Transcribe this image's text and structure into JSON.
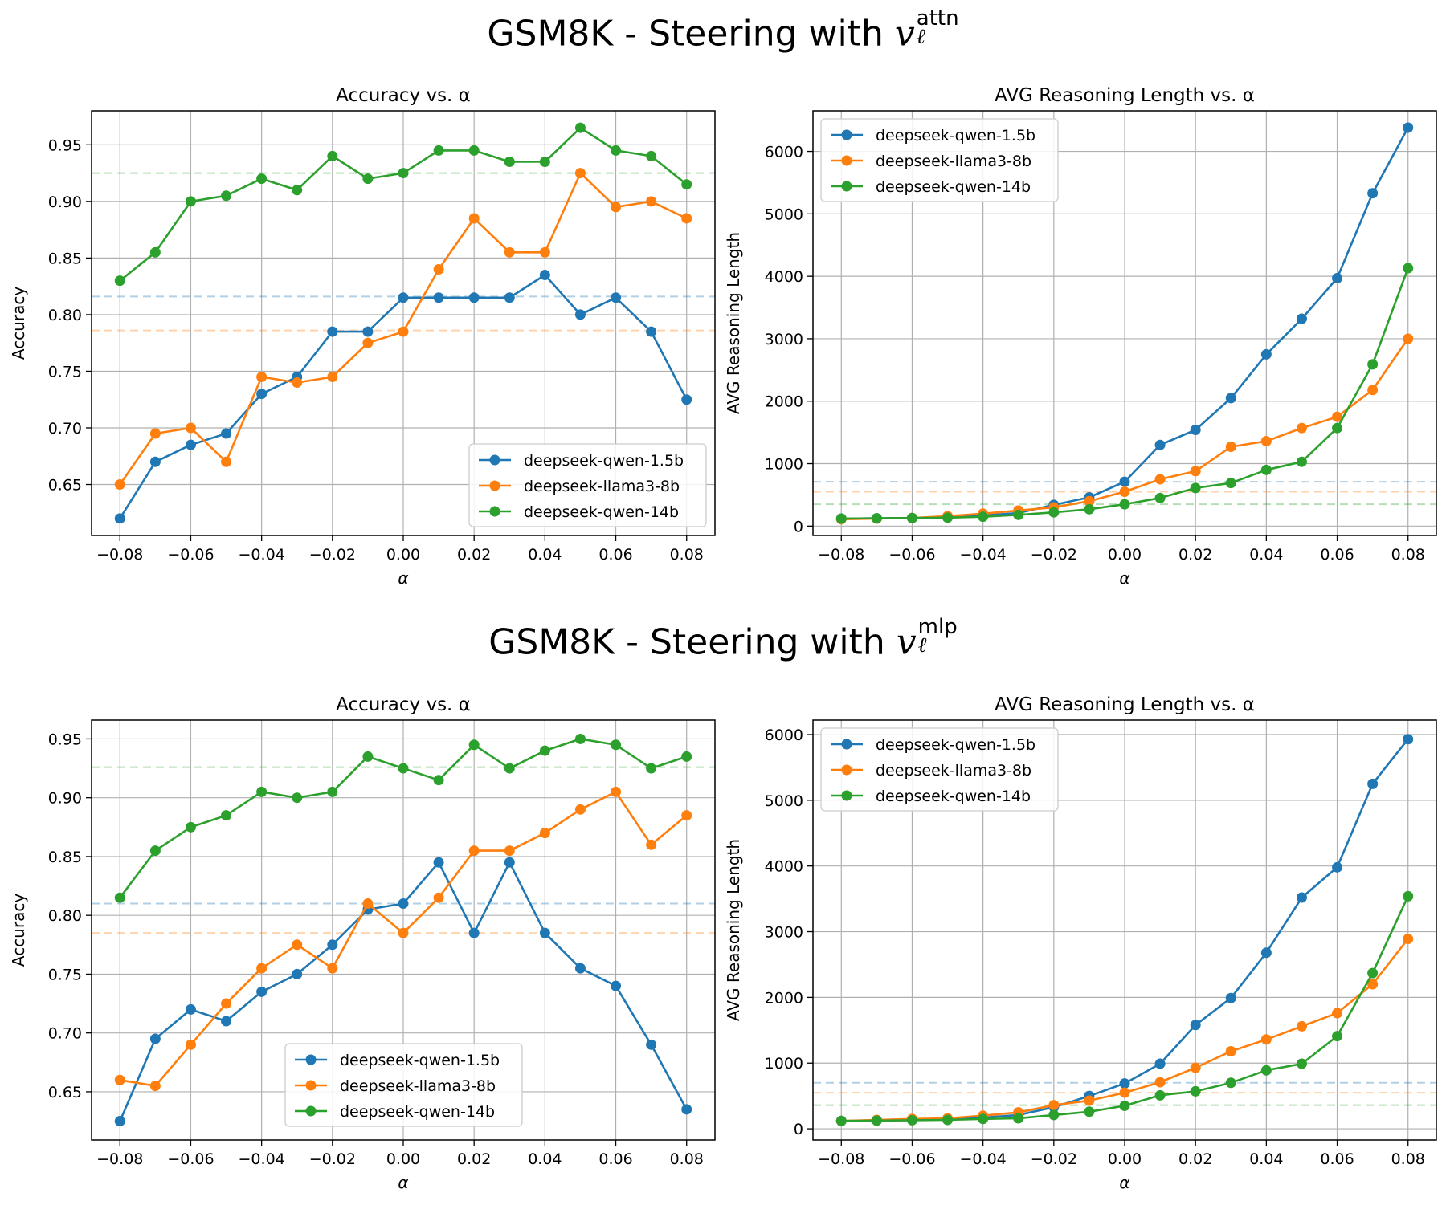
{
  "figures": [
    {
      "title": {
        "prefix": "GSM8K - Steering with",
        "var": "v",
        "sup": "attn",
        "sub": "ℓ"
      }
    },
    {
      "title": {
        "prefix": "GSM8K - Steering with",
        "var": "v",
        "sup": "mlp",
        "sub": "ℓ"
      }
    }
  ],
  "chart_data": [
    {
      "type": "line",
      "title": "Accuracy vs. α",
      "xlabel": "α",
      "ylabel": "Accuracy",
      "xlim": [
        -0.088,
        0.088
      ],
      "ylim": [
        0.605,
        0.98
      ],
      "xticks": [
        -0.08,
        -0.06,
        -0.04,
        -0.02,
        0.0,
        0.02,
        0.04,
        0.06,
        0.08
      ],
      "xtick_labels": [
        "−0.08",
        "−0.06",
        "−0.04",
        "−0.02",
        "0.00",
        "0.02",
        "0.04",
        "0.06",
        "0.08"
      ],
      "yticks": [
        0.65,
        0.7,
        0.75,
        0.8,
        0.85,
        0.9,
        0.95
      ],
      "ytick_labels": [
        "0.65",
        "0.70",
        "0.75",
        "0.80",
        "0.85",
        "0.90",
        "0.95"
      ],
      "grid": true,
      "legend": "lower right",
      "x": [
        -0.08,
        -0.07,
        -0.06,
        -0.05,
        -0.04,
        -0.03,
        -0.02,
        -0.01,
        0.0,
        0.01,
        0.02,
        0.03,
        0.04,
        0.05,
        0.06,
        0.07,
        0.08
      ],
      "series": [
        {
          "name": "deepseek-qwen-1.5b",
          "color": "#1f77b4",
          "baseline": 0.816,
          "values": [
            0.62,
            0.67,
            0.685,
            0.695,
            0.73,
            0.745,
            0.785,
            0.785,
            0.815,
            0.815,
            0.815,
            0.815,
            0.835,
            0.8,
            0.815,
            0.785,
            0.725
          ]
        },
        {
          "name": "deepseek-llama3-8b",
          "color": "#ff7f0e",
          "baseline": 0.786,
          "values": [
            0.65,
            0.695,
            0.7,
            0.67,
            0.745,
            0.74,
            0.745,
            0.775,
            0.785,
            0.84,
            0.885,
            0.855,
            0.855,
            0.925,
            0.895,
            0.9,
            0.885
          ]
        },
        {
          "name": "deepseek-qwen-14b",
          "color": "#2ca02c",
          "baseline": 0.925,
          "values": [
            0.83,
            0.855,
            0.9,
            0.905,
            0.92,
            0.91,
            0.94,
            0.92,
            0.925,
            0.945,
            0.945,
            0.935,
            0.935,
            0.965,
            0.945,
            0.94,
            0.915
          ]
        }
      ]
    },
    {
      "type": "line",
      "title": "AVG Reasoning Length vs. α",
      "xlabel": "α",
      "ylabel": "AVG Reasoning Length",
      "xlim": [
        -0.088,
        0.088
      ],
      "ylim": [
        -150,
        6650
      ],
      "xticks": [
        -0.08,
        -0.06,
        -0.04,
        -0.02,
        0.0,
        0.02,
        0.04,
        0.06,
        0.08
      ],
      "xtick_labels": [
        "−0.08",
        "−0.06",
        "−0.04",
        "−0.02",
        "0.00",
        "0.02",
        "0.04",
        "0.06",
        "0.08"
      ],
      "yticks": [
        0,
        1000,
        2000,
        3000,
        4000,
        5000,
        6000
      ],
      "ytick_labels": [
        "0",
        "1000",
        "2000",
        "3000",
        "4000",
        "5000",
        "6000"
      ],
      "grid": true,
      "legend": "upper left",
      "x": [
        -0.08,
        -0.07,
        -0.06,
        -0.05,
        -0.04,
        -0.03,
        -0.02,
        -0.01,
        0.0,
        0.01,
        0.02,
        0.03,
        0.04,
        0.05,
        0.06,
        0.07,
        0.08
      ],
      "series": [
        {
          "name": "deepseek-qwen-1.5b",
          "color": "#1f77b4",
          "baseline": 710,
          "values": [
            120,
            125,
            130,
            150,
            170,
            210,
            340,
            460,
            710,
            1300,
            1540,
            2050,
            2750,
            3320,
            3970,
            5330,
            6380
          ]
        },
        {
          "name": "deepseek-llama3-8b",
          "color": "#ff7f0e",
          "baseline": 550,
          "values": [
            110,
            120,
            130,
            160,
            200,
            250,
            300,
            400,
            550,
            750,
            880,
            1270,
            1360,
            1570,
            1750,
            2180,
            3000
          ]
        },
        {
          "name": "deepseek-qwen-14b",
          "color": "#2ca02c",
          "baseline": 350,
          "values": [
            120,
            125,
            130,
            135,
            150,
            180,
            220,
            270,
            350,
            450,
            610,
            690,
            900,
            1030,
            1570,
            2590,
            4130
          ]
        }
      ]
    },
    {
      "type": "line",
      "title": "Accuracy vs. α",
      "xlabel": "α",
      "ylabel": "Accuracy",
      "xlim": [
        -0.088,
        0.088
      ],
      "ylim": [
        0.609,
        0.966
      ],
      "xticks": [
        -0.08,
        -0.06,
        -0.04,
        -0.02,
        0.0,
        0.02,
        0.04,
        0.06,
        0.08
      ],
      "xtick_labels": [
        "−0.08",
        "−0.06",
        "−0.04",
        "−0.02",
        "0.00",
        "0.02",
        "0.04",
        "0.06",
        "0.08"
      ],
      "yticks": [
        0.65,
        0.7,
        0.75,
        0.8,
        0.85,
        0.9,
        0.95
      ],
      "ytick_labels": [
        "0.65",
        "0.70",
        "0.75",
        "0.80",
        "0.85",
        "0.90",
        "0.95"
      ],
      "grid": true,
      "legend": "lower center",
      "x": [
        -0.08,
        -0.07,
        -0.06,
        -0.05,
        -0.04,
        -0.03,
        -0.02,
        -0.01,
        0.0,
        0.01,
        0.02,
        0.03,
        0.04,
        0.05,
        0.06,
        0.07,
        0.08
      ],
      "series": [
        {
          "name": "deepseek-qwen-1.5b",
          "color": "#1f77b4",
          "baseline": 0.81,
          "values": [
            0.625,
            0.695,
            0.72,
            0.71,
            0.735,
            0.75,
            0.775,
            0.805,
            0.81,
            0.845,
            0.785,
            0.845,
            0.785,
            0.755,
            0.74,
            0.69,
            0.635
          ]
        },
        {
          "name": "deepseek-llama3-8b",
          "color": "#ff7f0e",
          "baseline": 0.785,
          "values": [
            0.66,
            0.655,
            0.69,
            0.725,
            0.755,
            0.775,
            0.755,
            0.81,
            0.785,
            0.815,
            0.855,
            0.855,
            0.87,
            0.89,
            0.905,
            0.86,
            0.885
          ]
        },
        {
          "name": "deepseek-qwen-14b",
          "color": "#2ca02c",
          "baseline": 0.926,
          "values": [
            0.815,
            0.855,
            0.875,
            0.885,
            0.905,
            0.9,
            0.905,
            0.935,
            0.925,
            0.915,
            0.945,
            0.925,
            0.94,
            0.95,
            0.945,
            0.925,
            0.935
          ]
        }
      ]
    },
    {
      "type": "line",
      "title": "AVG Reasoning Length vs. α",
      "xlabel": "α",
      "ylabel": "AVG Reasoning Length",
      "xlim": [
        -0.088,
        0.088
      ],
      "ylim": [
        -170,
        6220
      ],
      "xticks": [
        -0.08,
        -0.06,
        -0.04,
        -0.02,
        0.0,
        0.02,
        0.04,
        0.06,
        0.08
      ],
      "xtick_labels": [
        "−0.08",
        "−0.06",
        "−0.04",
        "−0.02",
        "0.00",
        "0.02",
        "0.04",
        "0.06",
        "0.08"
      ],
      "yticks": [
        0,
        1000,
        2000,
        3000,
        4000,
        5000,
        6000
      ],
      "ytick_labels": [
        "0",
        "1000",
        "2000",
        "3000",
        "4000",
        "5000",
        "6000"
      ],
      "grid": true,
      "legend": "upper left",
      "x": [
        -0.08,
        -0.07,
        -0.06,
        -0.05,
        -0.04,
        -0.03,
        -0.02,
        -0.01,
        0.0,
        0.01,
        0.02,
        0.03,
        0.04,
        0.05,
        0.06,
        0.07,
        0.08
      ],
      "series": [
        {
          "name": "deepseek-qwen-1.5b",
          "color": "#1f77b4",
          "baseline": 700,
          "values": [
            120,
            130,
            140,
            150,
            170,
            210,
            330,
            500,
            690,
            990,
            1580,
            1990,
            2680,
            3520,
            3980,
            5250,
            5930
          ]
        },
        {
          "name": "deepseek-llama3-8b",
          "color": "#ff7f0e",
          "baseline": 550,
          "values": [
            120,
            135,
            150,
            160,
            200,
            250,
            360,
            430,
            550,
            710,
            930,
            1180,
            1360,
            1560,
            1760,
            2200,
            2890
          ]
        },
        {
          "name": "deepseek-qwen-14b",
          "color": "#2ca02c",
          "baseline": 360,
          "values": [
            120,
            125,
            130,
            135,
            150,
            160,
            210,
            260,
            350,
            510,
            570,
            700,
            890,
            990,
            1410,
            2370,
            3540
          ]
        }
      ]
    }
  ]
}
